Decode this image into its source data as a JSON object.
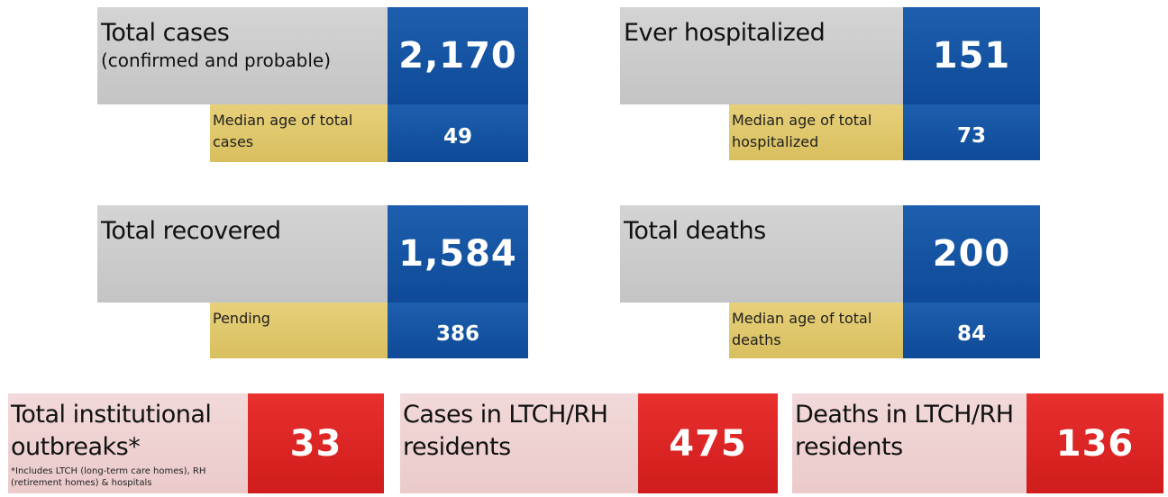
{
  "panels": {
    "total_cases": {
      "title": "Total cases",
      "subtitle": "(confirmed and probable)",
      "value": "2,170",
      "sub_label": "Median age of total cases",
      "sub_value": "49"
    },
    "ever_hospitalized": {
      "title": "Ever hospitalized",
      "value": "151",
      "sub_label_line1": "Median age of total",
      "sub_label_line2": "hospitalized",
      "sub_value": "73"
    },
    "total_recovered": {
      "title": "Total recovered",
      "value": "1,584",
      "sub_label": "Pending",
      "sub_value": "386"
    },
    "total_deaths": {
      "title": "Total deaths",
      "value": "200",
      "sub_label_line1": "Median age of total",
      "sub_label_line2": "deaths",
      "sub_value": "84"
    }
  },
  "institutional": {
    "outbreaks": {
      "title_line1": "Total institutional",
      "title_line2": "outbreaks*",
      "footnote_line1": "*Includes LTCH (long-term care homes), RH",
      "footnote_line2": "(retirement homes) & hospitals",
      "value": "33"
    },
    "cases_ltch": {
      "title_line1": "Cases in LTCH/RH",
      "title_line2": "residents",
      "value": "475"
    },
    "deaths_ltch": {
      "title_line1": "Deaths in LTCH/RH",
      "title_line2": "residents",
      "value": "136"
    }
  },
  "colors": {
    "blue": "#11509c",
    "grey": "#c8c8c8",
    "yellow": "#dfc76a",
    "pink": "#efd2d2",
    "red": "#de2725"
  }
}
